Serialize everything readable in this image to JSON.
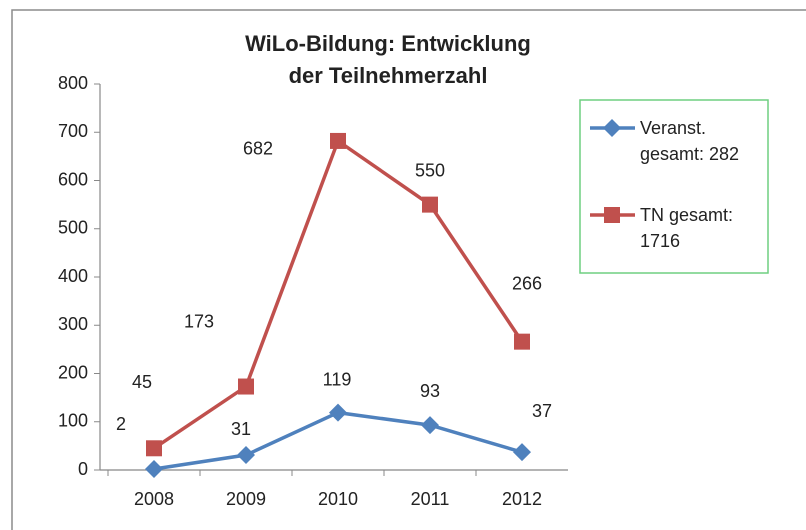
{
  "chart_data": {
    "type": "line",
    "title": [
      "WiLo-Bildung: Entwicklung",
      "der Teilnehmerzahl"
    ],
    "categories": [
      "2008",
      "2009",
      "2010",
      "2011",
      "2012"
    ],
    "series": [
      {
        "name": "Veranst. gesamt: 282",
        "color": "#4f81bd",
        "marker": "diamond",
        "values": [
          2,
          31,
          119,
          93,
          37
        ]
      },
      {
        "name": "TN gesamt: 1716",
        "color": "#c0504d",
        "marker": "square",
        "values": [
          45,
          173,
          682,
          550,
          266
        ]
      }
    ],
    "ylim": [
      0,
      800
    ],
    "yticks": [
      0,
      100,
      200,
      300,
      400,
      500,
      600,
      700,
      800
    ],
    "grid": false,
    "legend": "right",
    "data_labels": true
  }
}
